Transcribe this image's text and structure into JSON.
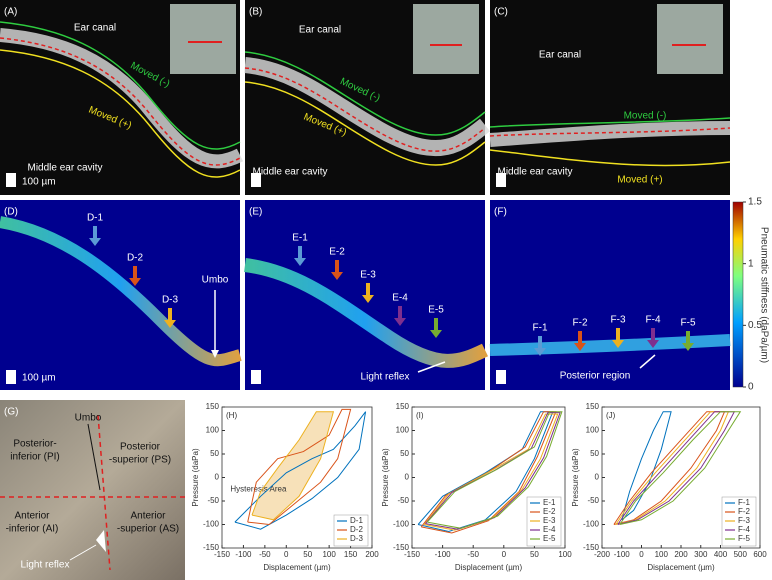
{
  "panels": [
    {
      "label": "(A)",
      "texts": [
        "Ear canal",
        "Moved (-)",
        "Moved (+)",
        "Middle ear cavity",
        "100 µm"
      ]
    },
    {
      "label": "(B)",
      "texts": [
        "Ear canal",
        "Moved (-)",
        "Moved (+)",
        "Middle ear cavity"
      ]
    },
    {
      "label": "(C)",
      "texts": [
        "Ear canal",
        "Moved (-)",
        "Moved (+)",
        "Middle ear cavity"
      ]
    },
    {
      "label": "(D)",
      "texts": [
        "D-1",
        "D-2",
        "D-3",
        "Umbo",
        "100 µm"
      ]
    },
    {
      "label": "(E)",
      "texts": [
        "E-1",
        "E-2",
        "E-3",
        "E-4",
        "E-5",
        "Light reflex"
      ]
    },
    {
      "label": "(F)",
      "texts": [
        "F-1",
        "F-2",
        "F-3",
        "F-4",
        "F-5",
        "Posterior region"
      ]
    },
    {
      "label": "(G)",
      "texts": [
        "Umbo",
        "Posterior-",
        "inferior (PI)",
        "Posterior",
        "-superior (PS)",
        "Anterior",
        "-inferior (AI)",
        "Anterior",
        "-superior (AS)",
        "Light reflex"
      ]
    }
  ],
  "colorbar": {
    "title": "Pneumatic stiffness (daPa/µm)",
    "lim": [
      0,
      1.5
    ],
    "ticks": [
      0,
      0.5,
      1,
      1.5
    ]
  },
  "chart_data": [
    {
      "type": "line",
      "title": "(H)",
      "x_label": "Displacement (µm)",
      "y_label": "Pressure (daPa)",
      "annotation": "Hysteresis Area",
      "xlim": [
        -150,
        200
      ],
      "xticks": [
        -150,
        -100,
        -50,
        0,
        50,
        100,
        150,
        200
      ],
      "ylim": [
        -150,
        150
      ],
      "yticks": [
        -150,
        -100,
        -50,
        0,
        50,
        100,
        150
      ],
      "legend": "lower right",
      "series": [
        {
          "name": "D-1",
          "color": "#0072bd",
          "x": [
            -120,
            -60,
            0,
            60,
            120,
            170,
            185,
            160,
            110,
            60,
            0,
            -60,
            -120
          ],
          "values": [
            -95,
            -110,
            -80,
            -45,
            0,
            60,
            140,
            110,
            60,
            40,
            10,
            -40,
            -95
          ]
        },
        {
          "name": "D-2",
          "color": "#d95319",
          "x": [
            -90,
            -40,
            20,
            80,
            120,
            150,
            130,
            100,
            40,
            -20,
            -70,
            -90
          ],
          "values": [
            -95,
            -100,
            -55,
            -10,
            40,
            145,
            145,
            90,
            55,
            40,
            -10,
            -95
          ]
        },
        {
          "name": "D-3",
          "color": "#edb120",
          "x": [
            -80,
            -30,
            30,
            80,
            110,
            70,
            30,
            -20,
            -60,
            -80
          ],
          "values": [
            -80,
            -90,
            -40,
            40,
            140,
            140,
            80,
            20,
            -30,
            -80
          ]
        }
      ]
    },
    {
      "type": "line",
      "title": "(I)",
      "x_label": "Displacement (µm)",
      "y_label": "Pressure (daPa)",
      "xlim": [
        -150,
        100
      ],
      "xticks": [
        -150,
        -100,
        -50,
        0,
        50,
        100
      ],
      "ylim": [
        -150,
        150
      ],
      "yticks": [
        -150,
        -100,
        -50,
        0,
        50,
        100,
        150
      ],
      "legend": "lower right",
      "series": [
        {
          "name": "E-1",
          "color": "#0072bd",
          "x": [
            -140,
            -90,
            -30,
            20,
            50,
            80,
            60,
            30,
            -30,
            -100,
            -140
          ],
          "values": [
            -100,
            -115,
            -90,
            -30,
            40,
            140,
            140,
            60,
            10,
            -40,
            -100
          ]
        },
        {
          "name": "E-2",
          "color": "#d95319",
          "x": [
            -135,
            -85,
            -25,
            25,
            55,
            85,
            65,
            35,
            -25,
            -95,
            -135
          ],
          "values": [
            -105,
            -118,
            -92,
            -30,
            45,
            140,
            140,
            65,
            12,
            -38,
            -105
          ]
        },
        {
          "name": "E-3",
          "color": "#edb120",
          "x": [
            -130,
            -80,
            -20,
            30,
            60,
            88,
            68,
            40,
            -20,
            -90,
            -130
          ],
          "values": [
            -100,
            -112,
            -88,
            -25,
            40,
            135,
            135,
            60,
            15,
            -35,
            -100
          ]
        },
        {
          "name": "E-4",
          "color": "#7e2f8e",
          "x": [
            -128,
            -75,
            -15,
            35,
            65,
            92,
            72,
            45,
            -15,
            -85,
            -128
          ],
          "values": [
            -98,
            -110,
            -85,
            -22,
            42,
            138,
            138,
            62,
            15,
            -32,
            -98
          ]
        },
        {
          "name": "E-5",
          "color": "#77ac30",
          "x": [
            -125,
            -70,
            -10,
            40,
            70,
            95,
            75,
            50,
            -10,
            -80,
            -125
          ],
          "values": [
            -95,
            -108,
            -82,
            -20,
            45,
            140,
            140,
            65,
            18,
            -30,
            -95
          ]
        }
      ]
    },
    {
      "type": "line",
      "title": "(J)",
      "x_label": "Displacement (µm)",
      "y_label": "Pressure (daPa)",
      "xlim": [
        -200,
        600
      ],
      "xticks": [
        -200,
        -100,
        0,
        100,
        200,
        300,
        400,
        500,
        600
      ],
      "ylim": [
        -150,
        150
      ],
      "yticks": [
        -150,
        -100,
        -50,
        0,
        50,
        100,
        150
      ],
      "legend": "lower right",
      "series": [
        {
          "name": "F-1",
          "color": "#0072bd",
          "x": [
            -100,
            -40,
            40,
            100,
            150,
            110,
            60,
            0,
            -60,
            -100
          ],
          "values": [
            -90,
            -70,
            -10,
            60,
            140,
            140,
            100,
            40,
            -30,
            -90
          ]
        },
        {
          "name": "F-2",
          "color": "#d95319",
          "x": [
            -140,
            -40,
            100,
            250,
            380,
            420,
            330,
            200,
            50,
            -60,
            -140
          ],
          "values": [
            -100,
            -90,
            -50,
            20,
            100,
            140,
            140,
            80,
            10,
            -50,
            -100
          ]
        },
        {
          "name": "F-3",
          "color": "#edb120",
          "x": [
            -130,
            -30,
            120,
            280,
            400,
            440,
            350,
            220,
            70,
            -50,
            -130
          ],
          "values": [
            -100,
            -90,
            -50,
            20,
            100,
            140,
            140,
            80,
            10,
            -50,
            -100
          ]
        },
        {
          "name": "F-4",
          "color": "#7e2f8e",
          "x": [
            -120,
            -20,
            140,
            300,
            420,
            470,
            370,
            240,
            90,
            -40,
            -120
          ],
          "values": [
            -100,
            -90,
            -50,
            20,
            100,
            140,
            140,
            80,
            10,
            -50,
            -100
          ]
        },
        {
          "name": "F-5",
          "color": "#77ac30",
          "x": [
            -110,
            0,
            160,
            320,
            440,
            500,
            400,
            260,
            110,
            -30,
            -110
          ],
          "values": [
            -100,
            -90,
            -50,
            20,
            100,
            140,
            140,
            80,
            10,
            -50,
            -100
          ]
        }
      ]
    }
  ]
}
